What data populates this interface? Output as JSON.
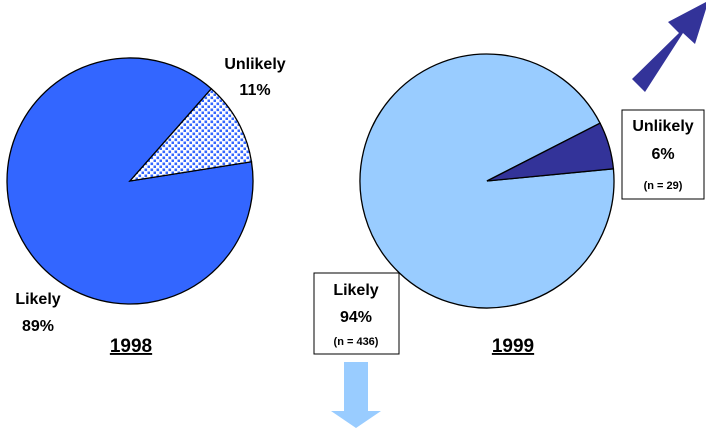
{
  "colors": {
    "likely_1998": "#3366ff",
    "unlikely_1998_dots": "#3366ff",
    "likely_1999": "#99ccff",
    "unlikely_1999": "#333399",
    "arrow_up": "#333399",
    "arrow_down": "#99ccff"
  },
  "chart_data": [
    {
      "type": "pie",
      "title": "1998",
      "slices": [
        {
          "label": "Likely",
          "percent": "89%",
          "value": 89
        },
        {
          "label": "Unlikely",
          "percent": "11%",
          "value": 11
        }
      ]
    },
    {
      "type": "pie",
      "title": "1999",
      "slices": [
        {
          "label": "Likely",
          "percent": "94%",
          "value": 94,
          "n": "(n = 436)"
        },
        {
          "label": "Unlikely",
          "percent": "6%",
          "value": 6,
          "n": "(n = 29)"
        }
      ]
    }
  ]
}
